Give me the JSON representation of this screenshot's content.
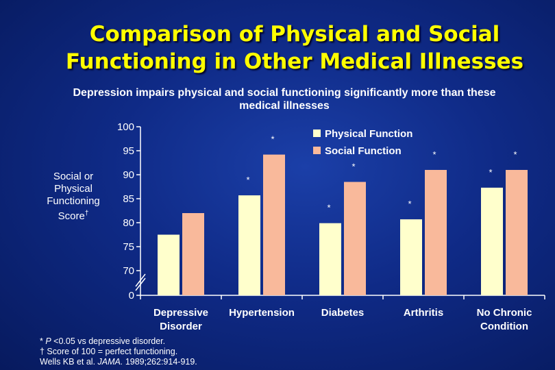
{
  "slide": {
    "title_line1": "Comparison of Physical and Social",
    "title_line2": "Functioning in Other Medical Illnesses",
    "subtitle_line1": "Depression impairs physical and social functioning significantly more than these",
    "subtitle_line2": "medical illnesses",
    "ylabel_lines": [
      "Social or",
      "Physical",
      "Functioning",
      "Score"
    ],
    "ylabel_dagger": "†",
    "footnotes": {
      "line1_prefix": "* ",
      "line1_italic": "P",
      "line1_rest": " <0.05 vs depressive disorder.",
      "line2": "† Score of 100 = perfect functioning.",
      "line3_prefix": "Wells KB et al. ",
      "line3_italic": "JAMA.",
      "line3_rest": " 1989;262:914-919."
    }
  },
  "chart_data": {
    "type": "bar",
    "categories": [
      [
        "Depressive",
        "Disorder"
      ],
      [
        "Hypertension"
      ],
      [
        "Diabetes"
      ],
      [
        "Arthritis"
      ],
      [
        "No Chronic",
        "Condition"
      ]
    ],
    "series": [
      {
        "name": "Physical Function",
        "color": "#ffffcc",
        "values": [
          77.5,
          85.7,
          79.9,
          80.7,
          87.3
        ]
      },
      {
        "name": "Social Function",
        "color": "#f9b99b",
        "values": [
          82.0,
          94.2,
          88.5,
          91.0,
          91.0
        ]
      }
    ],
    "significance_marks": [
      [
        null,
        null
      ],
      [
        "*",
        "*"
      ],
      [
        "*",
        "*"
      ],
      [
        "*",
        "*"
      ],
      [
        "*",
        "*"
      ]
    ],
    "yticks": [
      "100",
      "95",
      "90",
      "85",
      "80",
      "75",
      "70",
      "0"
    ],
    "ylim": [
      70,
      100
    ],
    "axis_break": true,
    "grid": false,
    "legend_position": "top-right",
    "colors": {
      "axis": "#ffffff",
      "tick_text": "#ffffff",
      "category_text": "#ffffff"
    }
  }
}
